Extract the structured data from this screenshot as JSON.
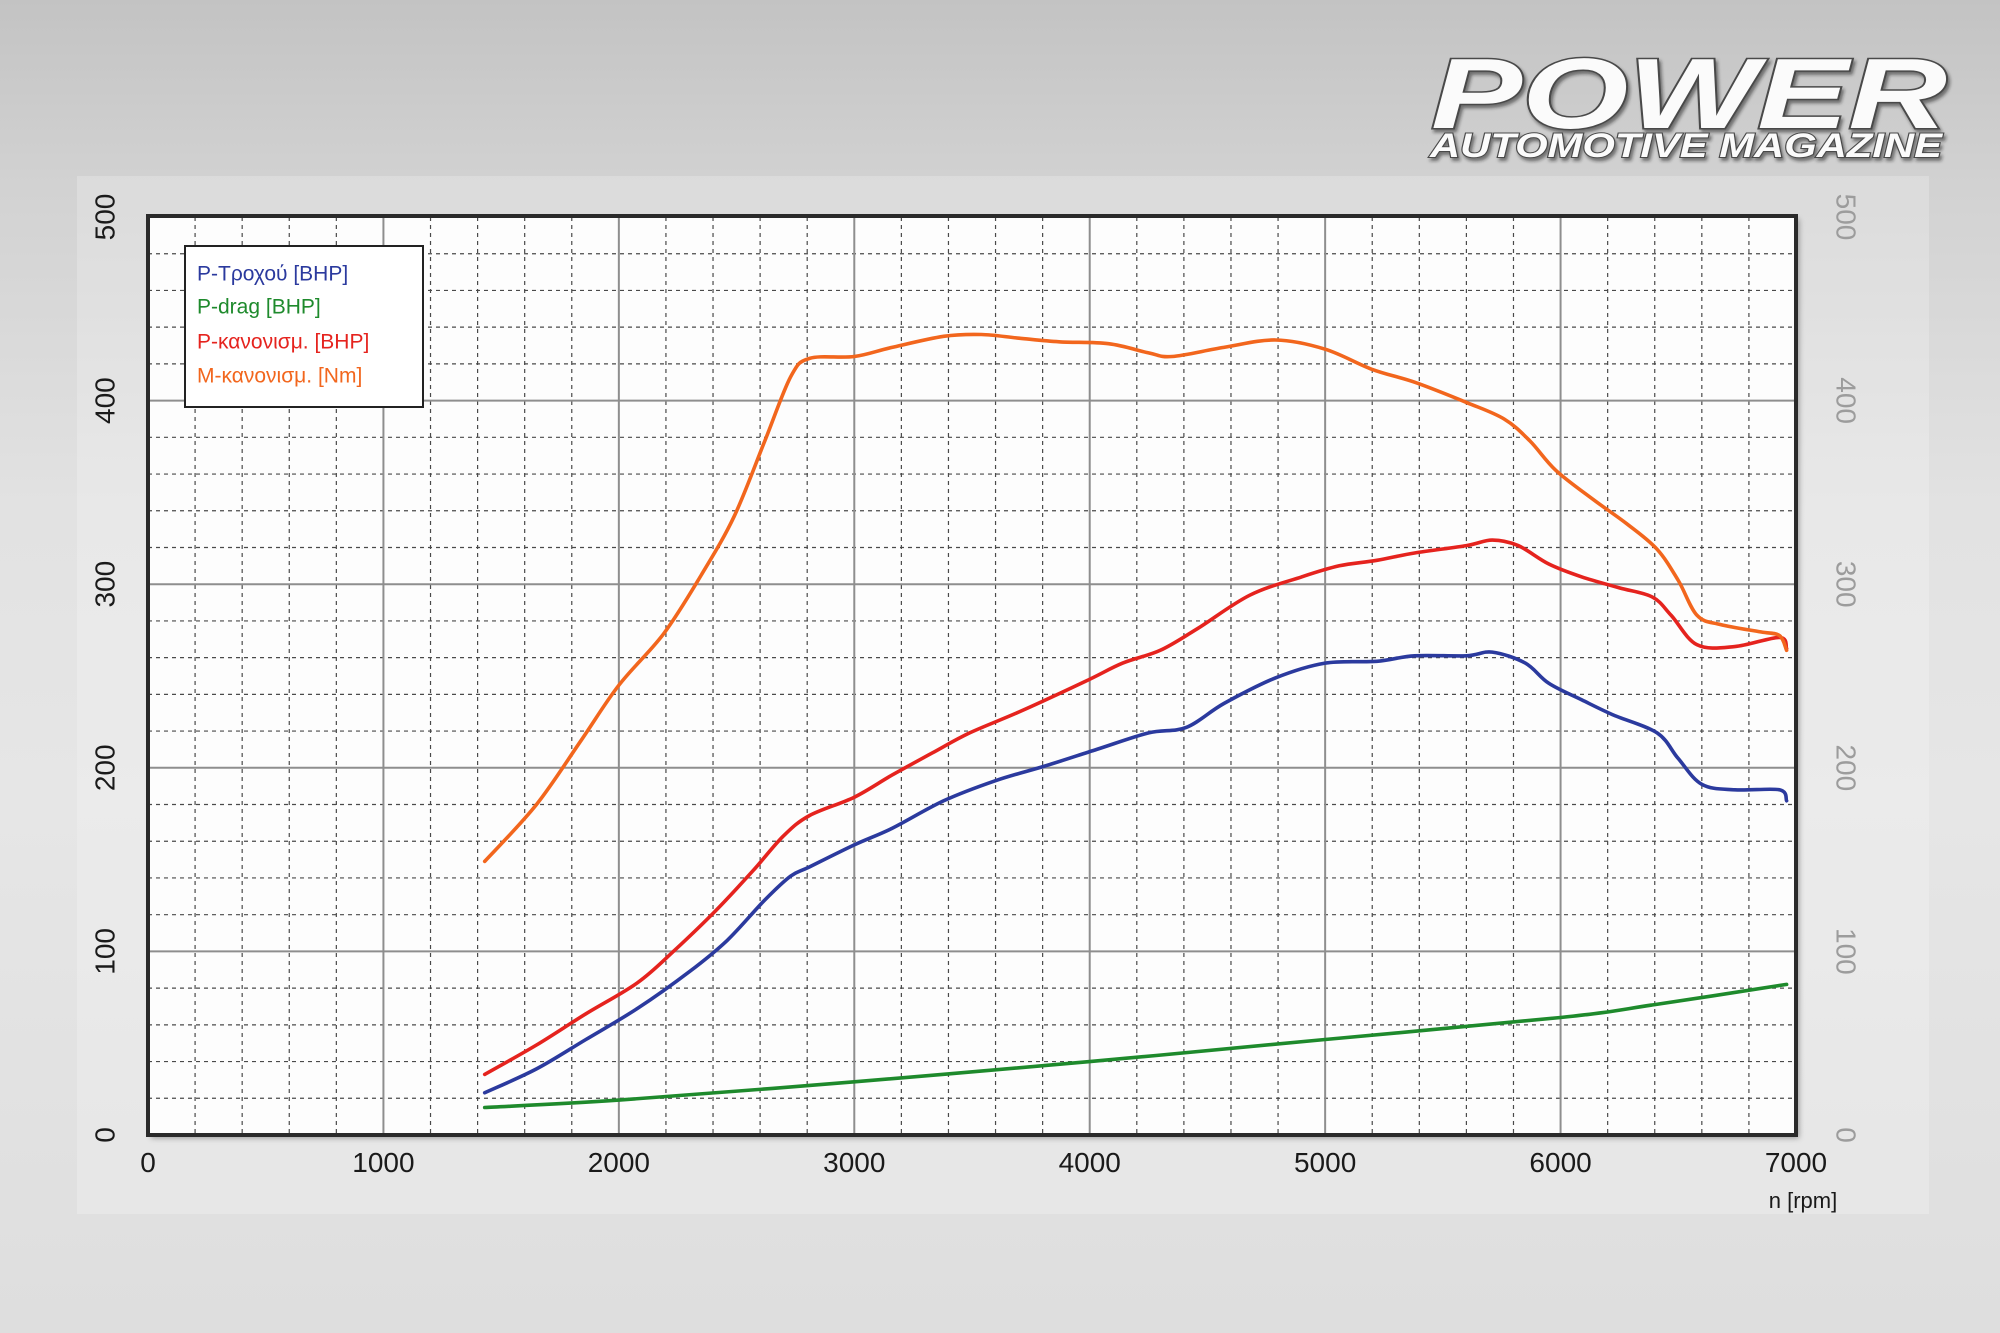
{
  "logo": {
    "title": "POWER",
    "subtitle": "AUTOMOTIVE MAGAZINE"
  },
  "colors": {
    "frame": "#2a2a2a",
    "major_grid": "#8e8e8e",
    "minor_grid": "#4a4a4a",
    "plot_bg": "#fdfdfd",
    "right_axis_text": "#9c9c9c"
  },
  "chart_data": {
    "type": "line",
    "xlabel": "n [rpm]",
    "xlim": [
      0,
      7000
    ],
    "ylim": [
      0,
      500
    ],
    "x_ticks": [
      0,
      1000,
      2000,
      3000,
      4000,
      5000,
      6000,
      7000
    ],
    "y_ticks": [
      0,
      100,
      200,
      300,
      400,
      500
    ],
    "y2_ticks": [
      0,
      100,
      200,
      300,
      400,
      500
    ],
    "x_minor_step": 200,
    "y_minor_step": 20,
    "grid": true,
    "legend": "top-left",
    "series": [
      {
        "name": "P-Τροχού [BHP]",
        "color": "#2b3a9e",
        "x": [
          1430,
          1650,
          1860,
          2080,
          2300,
          2460,
          2620,
          2730,
          2810,
          3000,
          3160,
          3380,
          3600,
          3810,
          4030,
          4250,
          4410,
          4570,
          4790,
          5000,
          5220,
          5380,
          5600,
          5710,
          5850,
          5950,
          6090,
          6220,
          6410,
          6500,
          6600,
          6740,
          6930,
          6960
        ],
        "y": [
          23,
          36,
          52,
          69,
          89,
          106,
          128,
          141,
          146,
          158,
          167,
          182,
          193,
          201,
          210,
          219,
          222,
          235,
          249,
          257,
          258,
          261,
          261,
          263,
          257,
          246,
          237,
          229,
          219,
          205,
          191,
          188,
          188,
          182
        ]
      },
      {
        "name": "P-drag [BHP]",
        "color": "#1e8a2c",
        "x": [
          1430,
          2000,
          3000,
          4000,
          5000,
          6000,
          6400,
          6960
        ],
        "y": [
          15,
          19,
          29,
          40,
          52,
          64,
          71,
          82
        ]
      },
      {
        "name": "P-κανονισμ. [BHP]",
        "color": "#e5231e",
        "x": [
          1430,
          1650,
          1860,
          2080,
          2240,
          2410,
          2570,
          2700,
          2810,
          3000,
          3160,
          3330,
          3490,
          3710,
          3980,
          4140,
          4300,
          4460,
          4680,
          4900,
          5060,
          5220,
          5380,
          5600,
          5710,
          5820,
          5950,
          6090,
          6250,
          6390,
          6470,
          6580,
          6740,
          6930,
          6960
        ],
        "y": [
          33,
          49,
          66,
          83,
          101,
          122,
          144,
          163,
          174,
          184,
          196,
          208,
          219,
          231,
          247,
          257,
          264,
          276,
          294,
          304,
          310,
          313,
          317,
          321,
          324,
          321,
          311,
          304,
          298,
          293,
          283,
          267,
          266,
          271,
          265
        ]
      },
      {
        "name": "M-κανονισμ. [Nm]",
        "color": "#f2661d",
        "x": [
          1430,
          1650,
          1840,
          2000,
          2190,
          2350,
          2490,
          2620,
          2730,
          2810,
          3000,
          3160,
          3380,
          3540,
          3700,
          3870,
          4080,
          4250,
          4350,
          4570,
          4790,
          5000,
          5200,
          5380,
          5600,
          5760,
          5870,
          5980,
          6140,
          6280,
          6410,
          6500,
          6580,
          6680,
          6850,
          6930,
          6960
        ],
        "y": [
          149,
          180,
          215,
          245,
          273,
          305,
          337,
          378,
          413,
          423,
          424,
          429,
          435,
          436,
          434,
          432,
          431,
          426,
          424,
          429,
          433,
          428,
          417,
          410,
          399,
          390,
          378,
          362,
          346,
          333,
          319,
          302,
          283,
          278,
          274,
          272,
          264
        ]
      }
    ]
  }
}
